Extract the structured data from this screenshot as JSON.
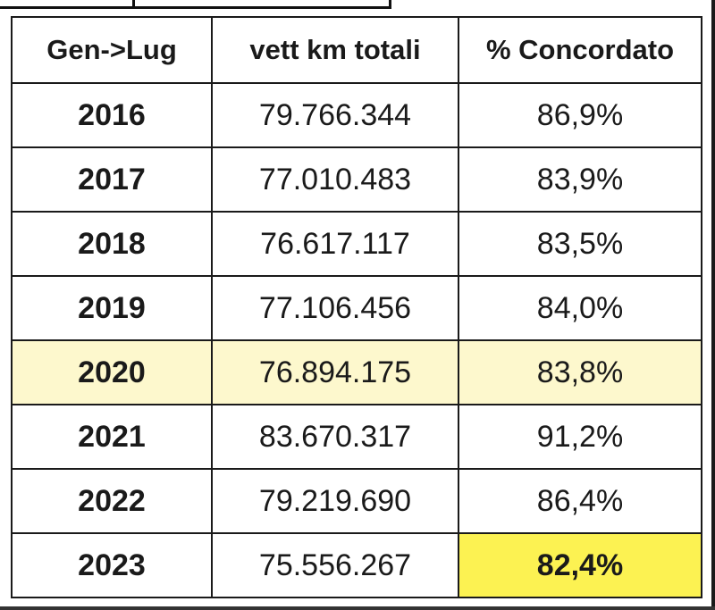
{
  "table": {
    "headers": [
      "Gen->Lug",
      "vett km totali",
      "% Concordato"
    ],
    "rows": [
      {
        "year": "2016",
        "km": "79.766.344",
        "pct": "86,9%"
      },
      {
        "year": "2017",
        "km": "77.010.483",
        "pct": "83,9%"
      },
      {
        "year": "2018",
        "km": "76.617.117",
        "pct": "83,5%"
      },
      {
        "year": "2019",
        "km": "77.106.456",
        "pct": "84,0%"
      },
      {
        "year": "2020",
        "km": "76.894.175",
        "pct": "83,8%"
      },
      {
        "year": "2021",
        "km": "83.670.317",
        "pct": "91,2%"
      },
      {
        "year": "2022",
        "km": "79.219.690",
        "pct": "86,4%"
      },
      {
        "year": "2023",
        "km": "75.556.267",
        "pct": "82,4%"
      }
    ]
  },
  "colors": {
    "row_highlight": "#fdf8cd",
    "cell_highlight": "#fcf252",
    "border": "#1a1a1a"
  }
}
